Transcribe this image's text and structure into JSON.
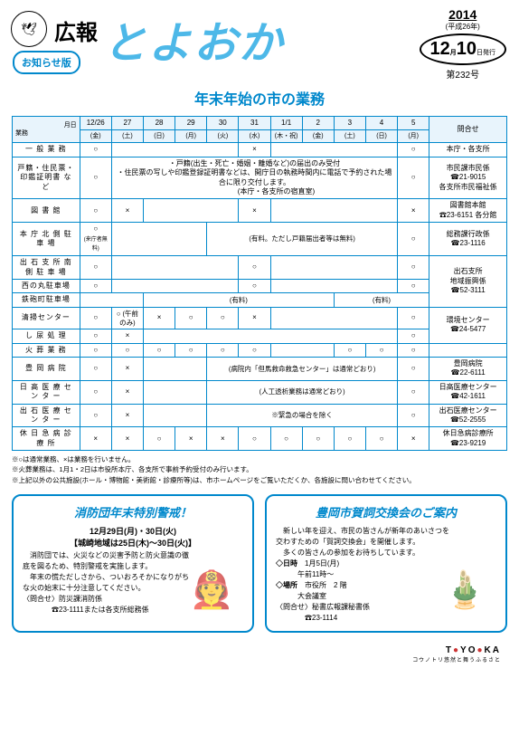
{
  "header": {
    "koho": "広報",
    "title": "とよおか",
    "badge": "お知らせ版",
    "year": "2014",
    "heisei": "(平成26年)",
    "month": "12",
    "day": "10",
    "issue_suffix": "日発行",
    "issue_no": "第232号"
  },
  "section_title": "年末年始の市の業務",
  "cols": {
    "service": "業務",
    "monthday": "月日",
    "dates": [
      "12/26",
      "27",
      "28",
      "29",
      "30",
      "31",
      "1/1",
      "2",
      "3",
      "4",
      "5"
    ],
    "days": [
      "(金)",
      "(土)",
      "(日)",
      "(月)",
      "(火)",
      "(水)",
      "(木・祝)",
      "(金)",
      "(土)",
      "(日)",
      "(月)"
    ],
    "contact": "問合せ"
  },
  "rows": [
    {
      "label": "一 般 業 務",
      "cells": [
        "○",
        "",
        "",
        "",
        "",
        "×",
        "",
        "",
        "",
        "",
        "○"
      ],
      "contact": "本庁・各支所"
    },
    {
      "label": "戸籍・住民票・印鑑証明書 な ど",
      "note": "・戸籍(出生・死亡・婚姻・離婚など)の届出のみ受付\n・住民票の写しや印鑑登録証明書などは、開庁日の執務時間内に電話で予約された場合に限り交付します。\n　　　　　　(本庁・各支所の宿直室)",
      "cells_pre": [
        "○"
      ],
      "cells_post": [
        "○"
      ],
      "contact": "市民課市民係\n☎21-9015\n各支所市民福祉係"
    },
    {
      "label": "図 書 館",
      "cells": [
        "○",
        "×",
        "",
        "",
        "",
        "×",
        "",
        "",
        "",
        "",
        "×"
      ],
      "contact": "図書館本館\n☎23-6151 各分館"
    },
    {
      "label": "本 庁 北 側 駐 車 場",
      "cells": [
        "○",
        "",
        "",
        "",
        "(有料。ただし戸籍届出者等は無料)",
        "",
        "",
        "",
        "",
        "",
        "○"
      ],
      "sub": "(来庁者無料)",
      "contact": "総務課行政係\n☎23-1116"
    },
    {
      "label": "出 石 支 所 南 側 駐 車 場",
      "cells": [
        "○",
        "",
        "",
        "",
        "",
        "○",
        "",
        "",
        "",
        "",
        "○"
      ],
      "contact_rowspan": 3,
      "contact": "出石支所\n地域振興係\n☎52-3111"
    },
    {
      "label": "西の丸駐車場",
      "cells": [
        "○",
        "",
        "",
        "",
        "",
        "○",
        "",
        "",
        "",
        "",
        "○"
      ]
    },
    {
      "label": "鉄砲町駐車場",
      "cells": [
        "",
        "",
        "(有料)",
        "",
        "",
        "",
        "",
        "",
        "(有料)",
        "",
        ""
      ]
    },
    {
      "label": "清掃センター",
      "cells": [
        "○",
        "○\n(午前のみ)",
        "×",
        "○",
        "○",
        "×",
        "",
        "",
        "",
        "",
        "○"
      ],
      "contact_rowspan": 2,
      "contact": "環境センター\n☎24-5477"
    },
    {
      "label": "し 尿 処 理",
      "cells": [
        "○",
        "×",
        "",
        "",
        "",
        "",
        "",
        "",
        "",
        "",
        "○"
      ]
    },
    {
      "label": "火 葬 業 務",
      "cells": [
        "○",
        "○",
        "○",
        "○",
        "○",
        "○",
        "",
        "",
        "○",
        "○",
        "○"
      ],
      "contact": ""
    },
    {
      "label": "豊 岡 病 院",
      "cells": [
        "○",
        "×",
        "",
        "",
        "(病院内「但馬救命救急センター」は通常どおり)",
        "",
        "",
        "",
        "",
        "",
        "○"
      ],
      "contact": "豊岡病院\n☎22-6111"
    },
    {
      "label": "日 高 医 療 セ ン タ ー",
      "cells": [
        "○",
        "×",
        "",
        "",
        "(人工透析業務は通常どおり)",
        "",
        "",
        "",
        "",
        "",
        "○"
      ],
      "contact": "日高医療センター\n☎42-1611"
    },
    {
      "label": "出 石 医 療 セ ン タ ー",
      "cells": [
        "○",
        "×",
        "",
        "",
        "※緊急の場合を除く",
        "",
        "",
        "",
        "",
        "",
        "○"
      ],
      "contact": "出石医療センター\n☎52-2555"
    },
    {
      "label": "休 日 急 病 診 療 所",
      "cells": [
        "×",
        "×",
        "○",
        "×",
        "×",
        "○",
        "○",
        "○",
        "○",
        "○",
        "×"
      ],
      "contact": "休日急病診療所\n☎23-9219"
    }
  ],
  "footnotes": [
    "※○は通常業務、×は業務を行いません。",
    "※火葬業務は、1月1・2日は市役所本庁、各支所で事前予約受付のみ行います。",
    "※上記以外の公共施設(ホール・博物館・美術館・診療所等)は、市ホームページをご覧いただくか、各施設に問い合わせてください。"
  ],
  "box1": {
    "title": "消防団年末特別警戒！",
    "dates": "12月29日(月)・30日(火)\n【城崎地域は25日(木)～30日(火)】",
    "body": "　消防団では、火災などの災害予防と防火意識の徹底を図るため、特別警戒を実施します。\n　年末の慌ただしさから、ついおろそかになりがちな火の始末に十分注意してください。",
    "contact": "〈問合せ〉防災課消防係\n　　　　☎23-1111または各支所総務係"
  },
  "box2": {
    "title": "豊岡市賀詞交換会のご案内",
    "body": "　新しい年を迎え、市民の皆さんが新年のあいさつを交わすための「賀詞交換会」を開催します。\n　多くの皆さんの参加をお待ちしています。",
    "datetime_label": "◇日時",
    "datetime": "1月5日(月)\n午前11時～",
    "place_label": "◇場所",
    "place": "市役所　2 階\n大会議室",
    "contact": "〈問合せ〉秘書広報課秘書係\n　　　　☎23-1114"
  },
  "footer": {
    "brand": "T YO KA",
    "sub": "コウノトリ悠然と舞うふるさと"
  }
}
